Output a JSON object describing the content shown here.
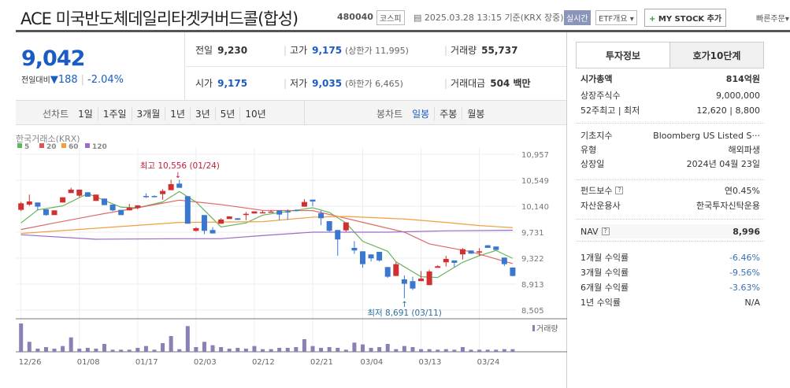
{
  "header": {
    "title": "ACE 미국반도체데일리타겟커버드콜(합성)",
    "code": "480040",
    "market": "코스피",
    "datetime": "2025.03.28 13:15 기준(KRX 장중)",
    "realtime": "실시간",
    "etf_overview": "ETF개요",
    "mystock": "MY STOCK 추가",
    "mystock_plus": "+",
    "quick_order": "빠른주문"
  },
  "quote": {
    "price": "9,042",
    "change_label": "전일대비",
    "change": "188",
    "change_pct": "-2.04%",
    "stats": [
      {
        "k": "전일",
        "v": "9,230"
      },
      {
        "k": "고가",
        "v": "9,175",
        "sub": "(상한가 11,995)"
      },
      {
        "k": "거래량",
        "v": "55,737"
      },
      {
        "k": "시가",
        "v": "9,175"
      },
      {
        "k": "저가",
        "v": "9,035",
        "sub": "(하한가 6,465)"
      },
      {
        "k": "거래대금",
        "v": "504 백만"
      }
    ]
  },
  "periods": {
    "line_label": "선차트",
    "line": [
      "1일",
      "1주일",
      "3개월",
      "1년",
      "3년",
      "5년",
      "10년"
    ],
    "candle_label": "봉차트",
    "candle": [
      "일봉",
      "주봉",
      "월봉"
    ],
    "candle_active": "일봉"
  },
  "tabs": [
    "투자정보",
    "호가10단계"
  ],
  "info": [
    {
      "k": "시가총액",
      "v": "814억원"
    },
    {
      "k": "상장주식수",
      "v": "9,000,000"
    },
    {
      "k": "52주최고 | 최저",
      "v": "12,620 | 8,800"
    },
    {
      "k": "기초지수",
      "v": "Bloomberg US Listed S···"
    },
    {
      "k": "유형",
      "v": "해외파생"
    },
    {
      "k": "상장일",
      "v": "2024년 04월 23일"
    },
    {
      "k": "펀드보수",
      "v": "연0.45%"
    },
    {
      "k": "자산운용사",
      "v": "한국투자신탁운용"
    },
    {
      "k": "NAV",
      "v": "8,996"
    },
    {
      "k": "1개월 수익률",
      "v": "-6.46%"
    },
    {
      "k": "3개월 수익률",
      "v": "-9.56%"
    },
    {
      "k": "6개월 수익률",
      "v": "-3.63%"
    },
    {
      "k": "1년 수익률",
      "v": "N/A"
    }
  ],
  "chart_data": {
    "type": "candlestick",
    "source": "한국거래소(KRX)",
    "legend": [
      {
        "name": "5",
        "color": "#5cb85c"
      },
      {
        "name": "20",
        "color": "#e05555"
      },
      {
        "name": "60",
        "color": "#f0a040"
      },
      {
        "name": "120",
        "color": "#9b6cc8"
      }
    ],
    "yticks": [
      "10,957",
      "10,549",
      "10,140",
      "9,731",
      "9,322",
      "8,913",
      "8,505"
    ],
    "ylim": [
      8505,
      10957
    ],
    "xlabels": [
      {
        "i": 0,
        "t": "12/26"
      },
      {
        "i": 7,
        "t": "01/08"
      },
      {
        "i": 14,
        "t": "01/17"
      },
      {
        "i": 21,
        "t": "02/03"
      },
      {
        "i": 28,
        "t": "02/12"
      },
      {
        "i": 35,
        "t": "02/21"
      },
      {
        "i": 41,
        "t": "03/04"
      },
      {
        "i": 48,
        "t": "03/13"
      },
      {
        "i": 55,
        "t": "03/24"
      }
    ],
    "high_note": "최고 10,556 (01/24)",
    "low_note": "최저 8,691 (03/11)",
    "high_idx": 19,
    "low_idx": 46,
    "volume_label": "거래량",
    "ohlc": [
      [
        10082,
        10206,
        10062,
        10185
      ],
      [
        10165,
        10322,
        10144,
        10214
      ],
      [
        10198,
        10198,
        10074,
        10132
      ],
      [
        10091,
        10091,
        9990,
        10000
      ],
      [
        10000,
        10074,
        10000,
        10074
      ],
      [
        10198,
        10280,
        10198,
        10280
      ],
      [
        10346,
        10432,
        10346,
        10400
      ],
      [
        10305,
        10400,
        10280,
        10400
      ],
      [
        10359,
        10359,
        10289,
        10289
      ],
      [
        10223,
        10322,
        10223,
        10322
      ],
      [
        10260,
        10260,
        10157,
        10157
      ],
      [
        10165,
        10165,
        10060,
        10074
      ],
      [
        10082,
        10082,
        10000,
        10000
      ],
      [
        10074,
        10177,
        10074,
        10115
      ],
      [
        10111,
        10152,
        10090,
        10152
      ],
      [
        10300,
        10342,
        10272,
        10290
      ],
      [
        10300,
        10310,
        10280,
        10290
      ],
      [
        10330,
        10408,
        10240,
        10380
      ],
      [
        10392,
        10556,
        10392,
        10487
      ],
      [
        10495,
        10556,
        10429,
        10429
      ],
      [
        10297,
        10297,
        9864,
        9864
      ],
      [
        9752,
        9810,
        9740,
        9794
      ],
      [
        10000,
        10000,
        9700,
        9752
      ],
      [
        9765,
        9810,
        9711,
        9711
      ],
      [
        9864,
        9950,
        9864,
        9930
      ],
      [
        9938,
        9979,
        9938,
        9979
      ],
      [
        9950,
        9950,
        9925,
        9925
      ],
      [
        10015,
        10050,
        9920,
        10020
      ],
      [
        10025,
        10058,
        10025,
        10058
      ],
      [
        10040,
        10070,
        10030,
        10045
      ],
      [
        10050,
        10080,
        10040,
        10055
      ],
      [
        10074,
        10074,
        9920,
        10008
      ],
      [
        10060,
        10090,
        9925,
        10050
      ],
      [
        10080,
        10090,
        10060,
        10070
      ],
      [
        10132,
        10250,
        10132,
        10206
      ],
      [
        10243,
        10243,
        10140,
        10214
      ],
      [
        10029,
        10070,
        9840,
        9950
      ],
      [
        9905,
        9905,
        9740,
        9752
      ],
      [
        9765,
        9765,
        9360,
        9616
      ],
      [
        9760,
        9884,
        9740,
        9884
      ],
      [
        9484,
        9590,
        9390,
        9443
      ],
      [
        9430,
        9430,
        9170,
        9228
      ],
      [
        9381,
        9381,
        9270,
        9319
      ],
      [
        9422,
        9422,
        9270,
        9286
      ],
      [
        9182,
        9182,
        9010,
        9030
      ],
      [
        9042,
        9260,
        9042,
        9228
      ],
      [
        8989,
        9050,
        8691,
        8919
      ],
      [
        8960,
        9030,
        8820,
        8844
      ],
      [
        8960,
        9120,
        8960,
        9001
      ],
      [
        8898,
        9140,
        8898,
        9113
      ],
      [
        9170,
        9210,
        9170,
        9195
      ],
      [
        9257,
        9360,
        9190,
        9310
      ],
      [
        9286,
        9286,
        9180,
        9249
      ],
      [
        9381,
        9480,
        9300,
        9463
      ],
      [
        9443,
        9443,
        9393,
        9393
      ],
      [
        9410,
        9480,
        9360,
        9430
      ],
      [
        9525,
        9525,
        9484,
        9484
      ],
      [
        9505,
        9505,
        9451,
        9451
      ],
      [
        9331,
        9331,
        9200,
        9228
      ],
      [
        9175,
        9175,
        9035,
        9042
      ]
    ],
    "volume": [
      108,
      38,
      12,
      18,
      12,
      22,
      55,
      12,
      15,
      12,
      30,
      8,
      8,
      8,
      15,
      22,
      8,
      33,
      60,
      10,
      98,
      18,
      38,
      25,
      18,
      12,
      15,
      12,
      22,
      10,
      10,
      15,
      15,
      18,
      48,
      22,
      15,
      18,
      15,
      8,
      35,
      28,
      15,
      18,
      30,
      10,
      22,
      18,
      10,
      10,
      8,
      10,
      8,
      18,
      8,
      8,
      8,
      8,
      10,
      10
    ],
    "ma": {
      "5": [
        [
          0,
          9876
        ],
        [
          2,
          10082
        ],
        [
          5,
          10144
        ],
        [
          8,
          10338
        ],
        [
          12,
          10124
        ],
        [
          14,
          10115
        ],
        [
          17,
          10206
        ],
        [
          19,
          10371
        ],
        [
          21,
          10206
        ],
        [
          24,
          9814
        ],
        [
          27,
          9876
        ],
        [
          29,
          10000
        ],
        [
          35,
          10115
        ],
        [
          37,
          10041
        ],
        [
          39,
          9876
        ],
        [
          41,
          9587
        ],
        [
          44,
          9430
        ],
        [
          45,
          9265
        ],
        [
          48,
          9030
        ],
        [
          50,
          9018
        ],
        [
          53,
          9257
        ],
        [
          55,
          9360
        ],
        [
          57,
          9443
        ],
        [
          59,
          9319
        ]
      ],
      "20": [
        [
          0,
          9773
        ],
        [
          4,
          9876
        ],
        [
          9,
          10000
        ],
        [
          14,
          10115
        ],
        [
          19,
          10235
        ],
        [
          24,
          10165
        ],
        [
          29,
          10074
        ],
        [
          35,
          10070
        ],
        [
          38,
          9979
        ],
        [
          42,
          9855
        ],
        [
          46,
          9731
        ],
        [
          49,
          9546
        ],
        [
          54,
          9422
        ],
        [
          59,
          9236
        ]
      ],
      "60": [
        [
          0,
          9711
        ],
        [
          9,
          9793
        ],
        [
          19,
          9884
        ],
        [
          29,
          9897
        ],
        [
          35,
          9967
        ],
        [
          39,
          9979
        ],
        [
          46,
          9938
        ],
        [
          51,
          9884
        ],
        [
          55,
          9835
        ],
        [
          59,
          9802
        ]
      ],
      "120": [
        [
          0,
          9690
        ],
        [
          9,
          9620
        ],
        [
          19,
          9628
        ],
        [
          24,
          9628
        ],
        [
          29,
          9678
        ],
        [
          35,
          9731
        ],
        [
          44,
          9731
        ],
        [
          51,
          9752
        ],
        [
          59,
          9760
        ]
      ]
    }
  }
}
